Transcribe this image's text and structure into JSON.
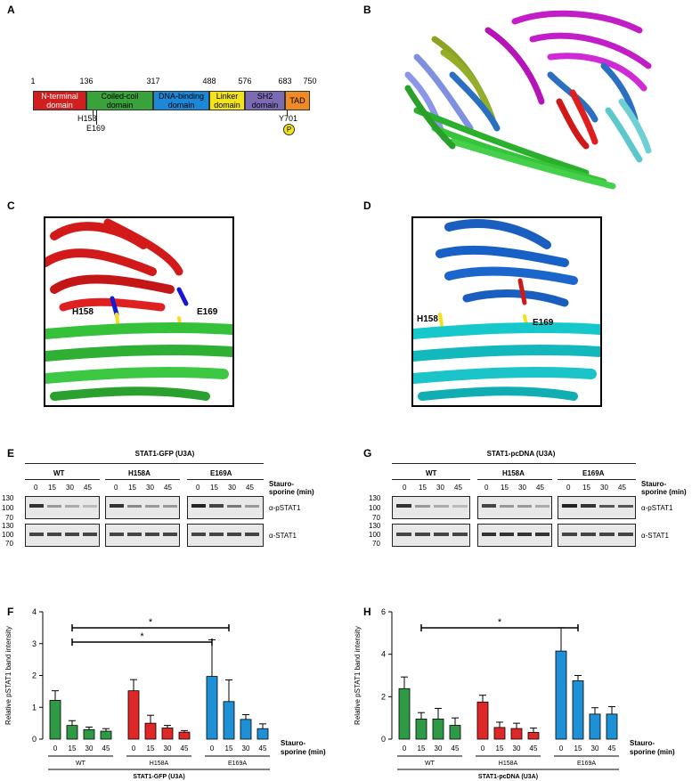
{
  "panels": {
    "A": "A",
    "B": "B",
    "C": "C",
    "D": "D",
    "E": "E",
    "F": "F",
    "G": "G",
    "H": "H"
  },
  "domains": {
    "ticks": [
      "1",
      "136",
      "317",
      "488",
      "576",
      "683",
      "750"
    ],
    "boxes": [
      {
        "label": "N-terminal domain",
        "color": "#d11e1e"
      },
      {
        "label": "Coiled-coil domain",
        "color": "#39a23a"
      },
      {
        "label": "DNA-binding domain",
        "color": "#1e88d8"
      },
      {
        "label": "Linker domain",
        "color": "#f2e31a"
      },
      {
        "label": "SH2 domain",
        "color": "#7a6bb3"
      },
      {
        "label": "TAD",
        "color": "#f08a24"
      }
    ],
    "sites": [
      "H158",
      "E169",
      "Y701"
    ],
    "phospho": "P"
  },
  "structure_labels": {
    "c": {
      "h158": "H158",
      "e169": "E169"
    },
    "d": {
      "h158": "H158",
      "e169": "E169"
    }
  },
  "blot_e": {
    "title": "STAT1-GFP (U3A)",
    "groups": [
      "WT",
      "H158A",
      "E169A"
    ],
    "times": [
      "0",
      "15",
      "30",
      "45"
    ],
    "stim": "Stauro-sporine (min)",
    "mw_top": [
      "130",
      "100",
      "70"
    ],
    "mw_bottom": [
      "130",
      "100",
      "70"
    ],
    "ab_top": "α-pSTAT1",
    "ab_bottom": "α-STAT1"
  },
  "blot_g": {
    "title": "STAT1-pcDNA (U3A)",
    "groups": [
      "WT",
      "H158A",
      "E169A"
    ],
    "times": [
      "0",
      "15",
      "30",
      "45"
    ],
    "stim": "Stauro-sporine (min)",
    "mw_top": [
      "130",
      "100",
      "70"
    ],
    "mw_bottom": [
      "130",
      "100",
      "70"
    ],
    "ab_top": "α-pSTAT1",
    "ab_bottom": "α-STAT1"
  },
  "chart_data": [
    {
      "type": "bar",
      "panel": "F",
      "ylabel": "Relative pSTAT1 band intensity",
      "ylim": [
        0,
        4
      ],
      "yticks": [
        "0",
        "1",
        "2",
        "3",
        "4"
      ],
      "categories": [
        "0",
        "15",
        "30",
        "45",
        "0",
        "15",
        "30",
        "45",
        "0",
        "15",
        "30",
        "45"
      ],
      "groups": [
        "WT",
        "H158A",
        "E169A"
      ],
      "group_colors": [
        "#2e9a46",
        "#e02727",
        "#1e90d6"
      ],
      "values": [
        1.22,
        0.43,
        0.3,
        0.25,
        1.52,
        0.5,
        0.35,
        0.22,
        1.97,
        1.18,
        0.62,
        0.33
      ],
      "errors": [
        0.3,
        0.15,
        0.08,
        0.08,
        0.35,
        0.25,
        0.08,
        0.05,
        1.15,
        0.68,
        0.15,
        0.15
      ],
      "significance": [
        {
          "label": "*"
        },
        {
          "label": "*"
        }
      ],
      "xlabel": "Stauro-sporine (min)",
      "footer": "STAT1-GFP (U3A)"
    },
    {
      "type": "bar",
      "panel": "H",
      "ylabel": "Relative pSTAT1 band intensity",
      "ylim": [
        0,
        6
      ],
      "yticks": [
        "0",
        "2",
        "4",
        "6"
      ],
      "categories": [
        "0",
        "15",
        "30",
        "45",
        "0",
        "15",
        "30",
        "45",
        "0",
        "15",
        "30",
        "45"
      ],
      "groups": [
        "WT",
        "H158A",
        "E169A"
      ],
      "group_colors": [
        "#2e9a46",
        "#e02727",
        "#1e90d6"
      ],
      "values": [
        2.38,
        0.95,
        0.95,
        0.65,
        1.75,
        0.55,
        0.5,
        0.32,
        4.15,
        2.75,
        1.18,
        1.18
      ],
      "errors": [
        0.55,
        0.3,
        0.5,
        0.35,
        0.32,
        0.25,
        0.25,
        0.2,
        1.1,
        0.25,
        0.3,
        0.35
      ],
      "significance": [
        {
          "label": "*"
        }
      ],
      "xlabel": "Stauro-sporine (min)",
      "footer": "STAT1-pcDNA (U3A)"
    }
  ]
}
